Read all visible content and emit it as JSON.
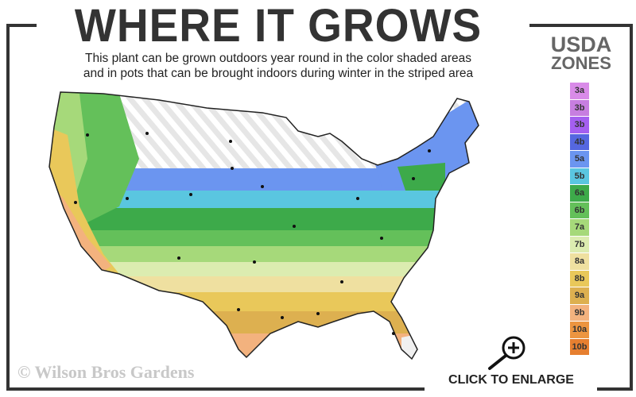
{
  "header": {
    "title": "WHERE IT GROWS",
    "subtitle_line1": "This plant can be grown outdoors year round in the color shaded areas",
    "subtitle_line2": "and in pots that can be brought indoors during winter in the striped area"
  },
  "legend": {
    "title_line1": "USDA",
    "title_line2": "ZONES",
    "zones": [
      {
        "label": "3a",
        "color": "#d98be8"
      },
      {
        "label": "3b",
        "color": "#c77ee0"
      },
      {
        "label": "3b",
        "color": "#a45ff0"
      },
      {
        "label": "4b",
        "color": "#5567e0"
      },
      {
        "label": "5a",
        "color": "#6b95f0"
      },
      {
        "label": "5b",
        "color": "#5ac6e0"
      },
      {
        "label": "6a",
        "color": "#3daa4a"
      },
      {
        "label": "6b",
        "color": "#64c05a"
      },
      {
        "label": "7a",
        "color": "#a6d97a"
      },
      {
        "label": "7b",
        "color": "#dcecb0"
      },
      {
        "label": "8a",
        "color": "#efe0a0"
      },
      {
        "label": "8b",
        "color": "#e9c85a"
      },
      {
        "label": "9a",
        "color": "#ddb050"
      },
      {
        "label": "9b",
        "color": "#f3b27e"
      },
      {
        "label": "10a",
        "color": "#ec9540"
      },
      {
        "label": "10b",
        "color": "#e67f30"
      }
    ]
  },
  "map": {
    "striped_area_meaning": "pots brought indoors during winter",
    "shaded_area_meaning": "grown outdoors year round"
  },
  "footer": {
    "watermark": "© Wilson Bros Gardens",
    "enlarge_label": "CLICK TO ENLARGE",
    "enlarge_icon": "zoom-in-magnifier-icon"
  }
}
